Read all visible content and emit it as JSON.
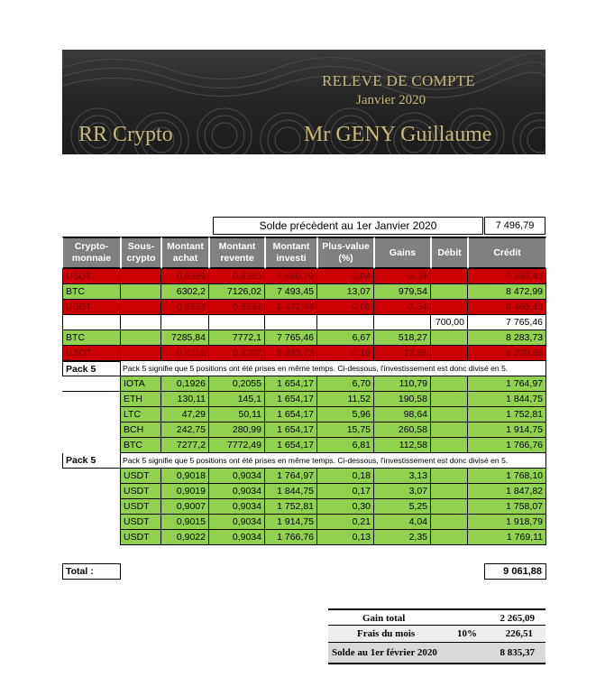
{
  "banner": {
    "title": "RELEVE DE COMPTE",
    "month": "Janvier 2020",
    "brand": "RR Crypto",
    "client": "Mr GENY Guillaume"
  },
  "previous_balance": {
    "label": "Solde précèdent au 1er Janvier 2020",
    "value": "7 496,79"
  },
  "headers": [
    "Crypto-\nmonnaie",
    "Sous-\ncrypto",
    "Montant\nachat",
    "Montant\nrevente",
    "Montant\ninvesti",
    "Plus-value\n(%)",
    "Gains",
    "Débit",
    "Crédit"
  ],
  "rows_top": [
    {
      "style": "red",
      "cells": [
        "USDT",
        "",
        "0,8989",
        "0,8985",
        "7 496,79",
        "-0,04",
        "-3,34",
        "",
        "7 493,45"
      ]
    },
    {
      "style": "green",
      "cells": [
        "BTC",
        "",
        "6302,2",
        "7126,02",
        "7 493,45",
        "13,07",
        "979,54",
        "",
        "8 472,99"
      ]
    },
    {
      "style": "red",
      "cells": [
        "USDT",
        "",
        "0,8992",
        "0,8934",
        "8 472,99",
        "-0,09",
        "-7,54",
        "",
        "8 465,45"
      ]
    },
    {
      "style": "white",
      "cells": [
        "",
        "",
        "",
        "",
        "",
        "",
        "",
        "700,00",
        "7 765,46"
      ]
    },
    {
      "style": "green",
      "cells": [
        "BTC",
        "",
        "7285,84",
        "7772,1",
        "7 765,46",
        "6,67",
        "518,27",
        "",
        "8 283,73"
      ]
    },
    {
      "style": "red",
      "cells": [
        "USDT",
        "",
        "0,9016",
        "0,9002",
        "8 283,73",
        "-0,16",
        "-12,86",
        "",
        "8 270,86"
      ]
    }
  ],
  "pack1": {
    "label": "Pack 5",
    "note": "Pack 5 signifie que 5 positions ont été prises en même temps. Ci-dessous, l'investissement est donc divisé en 5.",
    "rows": [
      [
        "IOTA",
        "0,1926",
        "0,2055",
        "1 654,17",
        "6,70",
        "110,79",
        "",
        "1 764,97"
      ],
      [
        "ETH",
        "130,11",
        "145,1",
        "1 654,17",
        "11,52",
        "190,58",
        "",
        "1 844,75"
      ],
      [
        "LTC",
        "47,29",
        "50,11",
        "1 654,17",
        "5,96",
        "98,64",
        "",
        "1 752,81"
      ],
      [
        "BCH",
        "242,75",
        "280,99",
        "1 654,17",
        "15,75",
        "260,58",
        "",
        "1 914,75"
      ],
      [
        "BTC",
        "7277,2",
        "7772,49",
        "1 654,17",
        "6,81",
        "112,58",
        "",
        "1 766,76"
      ]
    ]
  },
  "pack2": {
    "label": "Pack 5",
    "note": "Pack 5 signifie que 5 positions ont été prises en même temps. Ci-dessous, l'investissement est donc divisé en 5.",
    "rows": [
      [
        "USDT",
        "0,9018",
        "0,9034",
        "1 764,97",
        "0,18",
        "3,13",
        "",
        "1 768,10"
      ],
      [
        "USDT",
        "0,9019",
        "0,9034",
        "1 844,75",
        "0,17",
        "3,07",
        "",
        "1 847,82"
      ],
      [
        "USDT",
        "0,9007",
        "0,9034",
        "1 752,81",
        "0,30",
        "5,25",
        "",
        "1 758,07"
      ],
      [
        "USDT",
        "0,9015",
        "0,9034",
        "1 914,75",
        "0,21",
        "4,04",
        "",
        "1 918,79"
      ],
      [
        "USDT",
        "0,9022",
        "0,9034",
        "1 766,76",
        "0,13",
        "2,35",
        "",
        "1 769,11"
      ]
    ]
  },
  "total": {
    "label": "Total :",
    "value": "9 061,88"
  },
  "summary": {
    "gain_label": "Gain total",
    "gain_value": "2 265,09",
    "fees_label": "Frais du mois",
    "fees_pct": "10%",
    "fees_value": "226,51",
    "final_label": "Solde au 1er février 2020",
    "final_value": "8 835,37"
  },
  "colors": {
    "green": "#92d050",
    "red": "#cc0000",
    "header_grey": "#808080",
    "banner_gold": "#c8b77a"
  }
}
